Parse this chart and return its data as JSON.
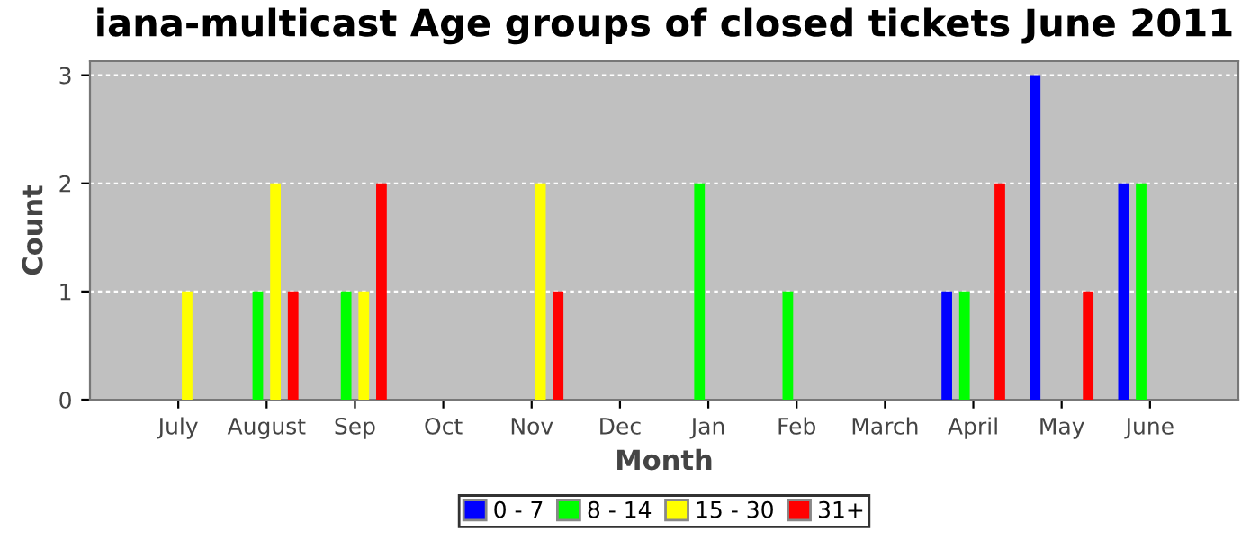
{
  "chart_data": {
    "type": "bar",
    "title": "iana-multicast Age groups of closed tickets June 2011",
    "xlabel": "Month",
    "ylabel": "Count",
    "categories": [
      "July",
      "August",
      "Sep",
      "Oct",
      "Nov",
      "Dec",
      "Jan",
      "Feb",
      "March",
      "April",
      "May",
      "June"
    ],
    "series": [
      {
        "name": "0 - 7",
        "color": "#0000ff",
        "values": [
          0,
          0,
          0,
          0,
          0,
          0,
          0,
          0,
          0,
          1,
          3,
          2
        ]
      },
      {
        "name": "8 - 14",
        "color": "#00ff00",
        "values": [
          0,
          1,
          1,
          0,
          0,
          0,
          2,
          1,
          0,
          1,
          0,
          2
        ]
      },
      {
        "name": "15 - 30",
        "color": "#ffff00",
        "values": [
          1,
          2,
          1,
          0,
          2,
          0,
          0,
          0,
          0,
          0,
          0,
          0
        ]
      },
      {
        "name": "31+",
        "color": "#ff0000",
        "values": [
          0,
          1,
          2,
          0,
          1,
          0,
          0,
          0,
          0,
          2,
          1,
          0
        ]
      }
    ],
    "ylim": [
      0,
      3.13
    ],
    "yticks": [
      0,
      1,
      2,
      3
    ],
    "grid": "y",
    "legend": "bottom"
  }
}
